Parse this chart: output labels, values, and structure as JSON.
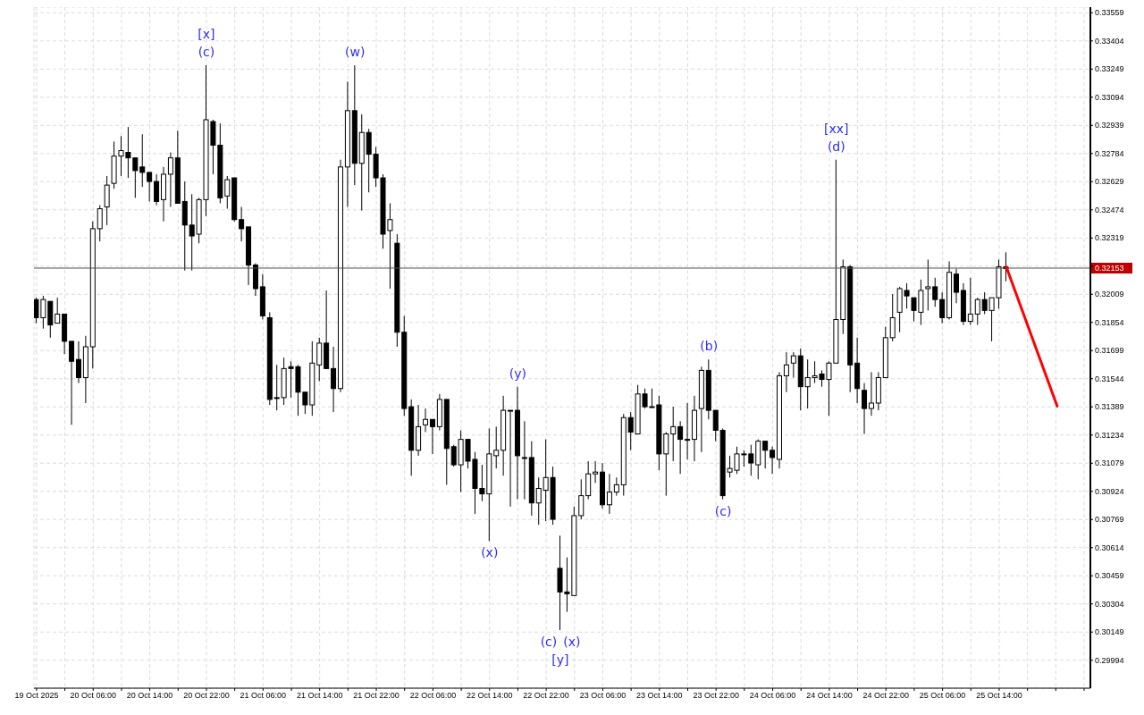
{
  "chart_data": {
    "type": "candlestick",
    "x": [
      "2025-10-19T22:00",
      "2025-10-19T23:00",
      "2025-10-20T00:00",
      "2025-10-20T01:00",
      "2025-10-20T02:00",
      "2025-10-20T03:00",
      "2025-10-20T04:00",
      "2025-10-20T05:00",
      "2025-10-20T06:00",
      "2025-10-20T07:00",
      "2025-10-20T08:00",
      "2025-10-20T09:00",
      "2025-10-20T10:00",
      "2025-10-20T11:00",
      "2025-10-20T12:00",
      "2025-10-20T13:00",
      "2025-10-20T14:00",
      "2025-10-20T15:00",
      "2025-10-20T16:00",
      "2025-10-20T17:00",
      "2025-10-20T18:00",
      "2025-10-20T19:00",
      "2025-10-20T20:00",
      "2025-10-20T21:00",
      "2025-10-20T22:00",
      "2025-10-20T23:00",
      "2025-10-21T00:00",
      "2025-10-21T01:00",
      "2025-10-21T02:00",
      "2025-10-21T03:00",
      "2025-10-21T04:00",
      "2025-10-21T05:00",
      "2025-10-21T06:00",
      "2025-10-21T07:00",
      "2025-10-21T08:00",
      "2025-10-21T09:00",
      "2025-10-21T10:00",
      "2025-10-21T11:00",
      "2025-10-21T12:00",
      "2025-10-21T13:00",
      "2025-10-21T14:00",
      "2025-10-21T15:00",
      "2025-10-21T16:00",
      "2025-10-21T17:00",
      "2025-10-21T18:00",
      "2025-10-21T19:00",
      "2025-10-21T20:00",
      "2025-10-21T21:00",
      "2025-10-21T22:00",
      "2025-10-21T23:00",
      "2025-10-22T00:00",
      "2025-10-22T01:00",
      "2025-10-22T02:00",
      "2025-10-22T03:00",
      "2025-10-22T04:00",
      "2025-10-22T05:00",
      "2025-10-22T06:00",
      "2025-10-22T07:00",
      "2025-10-22T08:00",
      "2025-10-22T09:00",
      "2025-10-22T10:00",
      "2025-10-22T11:00",
      "2025-10-22T12:00",
      "2025-10-22T13:00",
      "2025-10-22T14:00",
      "2025-10-22T15:00",
      "2025-10-22T16:00",
      "2025-10-22T17:00",
      "2025-10-22T18:00",
      "2025-10-22T19:00",
      "2025-10-22T20:00",
      "2025-10-22T21:00",
      "2025-10-22T22:00",
      "2025-10-22T23:00",
      "2025-10-23T00:00",
      "2025-10-23T01:00",
      "2025-10-23T02:00",
      "2025-10-23T03:00",
      "2025-10-23T04:00",
      "2025-10-23T05:00",
      "2025-10-23T06:00",
      "2025-10-23T07:00",
      "2025-10-23T08:00",
      "2025-10-23T09:00",
      "2025-10-23T10:00",
      "2025-10-23T11:00",
      "2025-10-23T12:00",
      "2025-10-23T13:00",
      "2025-10-23T14:00",
      "2025-10-23T15:00",
      "2025-10-23T16:00",
      "2025-10-23T17:00",
      "2025-10-23T18:00",
      "2025-10-23T19:00",
      "2025-10-23T20:00",
      "2025-10-23T21:00",
      "2025-10-23T22:00",
      "2025-10-23T23:00",
      "2025-10-24T00:00",
      "2025-10-24T01:00",
      "2025-10-24T02:00",
      "2025-10-24T03:00",
      "2025-10-24T04:00",
      "2025-10-24T05:00",
      "2025-10-24T06:00",
      "2025-10-24T07:00",
      "2025-10-24T08:00",
      "2025-10-24T09:00",
      "2025-10-24T10:00",
      "2025-10-24T11:00",
      "2025-10-24T12:00",
      "2025-10-24T13:00",
      "2025-10-24T14:00",
      "2025-10-24T15:00",
      "2025-10-24T16:00",
      "2025-10-24T17:00",
      "2025-10-24T18:00",
      "2025-10-24T19:00",
      "2025-10-24T20:00",
      "2025-10-24T21:00",
      "2025-10-24T22:00",
      "2025-10-24T23:00",
      "2025-10-25T00:00",
      "2025-10-25T01:00",
      "2025-10-25T02:00",
      "2025-10-25T03:00",
      "2025-10-25T04:00",
      "2025-10-25T05:00",
      "2025-10-25T06:00",
      "2025-10-25T07:00",
      "2025-10-25T08:00",
      "2025-10-25T09:00",
      "2025-10-25T10:00",
      "2025-10-25T11:00",
      "2025-10-25T12:00",
      "2025-10-25T13:00",
      "2025-10-25T14:00",
      "2025-10-25T15:00"
    ],
    "ohlc": [
      [
        0.3198,
        0.3199,
        0.3185,
        0.3188
      ],
      [
        0.3188,
        0.32,
        0.3182,
        0.3198
      ],
      [
        0.3197,
        0.3197,
        0.3177,
        0.3184
      ],
      [
        0.3185,
        0.3199,
        0.3185,
        0.319
      ],
      [
        0.319,
        0.319,
        0.3168,
        0.3175
      ],
      [
        0.3175,
        0.3175,
        0.3129,
        0.3164
      ],
      [
        0.3165,
        0.3175,
        0.3152,
        0.3155
      ],
      [
        0.3155,
        0.3178,
        0.3141,
        0.3172
      ],
      [
        0.3172,
        0.3241,
        0.316,
        0.3237
      ],
      [
        0.3237,
        0.325,
        0.323,
        0.3248
      ],
      [
        0.3249,
        0.3266,
        0.3239,
        0.3261
      ],
      [
        0.3262,
        0.3285,
        0.3259,
        0.3277
      ],
      [
        0.3277,
        0.3288,
        0.3266,
        0.328
      ],
      [
        0.3279,
        0.3293,
        0.3265,
        0.3276
      ],
      [
        0.3276,
        0.3276,
        0.3254,
        0.3269
      ],
      [
        0.3271,
        0.3289,
        0.326,
        0.3268
      ],
      [
        0.3268,
        0.3268,
        0.3252,
        0.3263
      ],
      [
        0.3263,
        0.3267,
        0.325,
        0.3252
      ],
      [
        0.3253,
        0.3271,
        0.3241,
        0.3267
      ],
      [
        0.3267,
        0.3279,
        0.3249,
        0.3276
      ],
      [
        0.3276,
        0.3291,
        0.3251,
        0.3251
      ],
      [
        0.3252,
        0.3263,
        0.3214,
        0.3239
      ],
      [
        0.3239,
        0.3256,
        0.3214,
        0.3233
      ],
      [
        0.3234,
        0.3254,
        0.3229,
        0.3253
      ],
      [
        0.3253,
        0.3327,
        0.3244,
        0.3297
      ],
      [
        0.3296,
        0.3297,
        0.3267,
        0.3283
      ],
      [
        0.3283,
        0.3295,
        0.3251,
        0.3254
      ],
      [
        0.3255,
        0.3266,
        0.3248,
        0.3264
      ],
      [
        0.3265,
        0.3265,
        0.3241,
        0.3242
      ],
      [
        0.3242,
        0.3249,
        0.323,
        0.3237
      ],
      [
        0.3238,
        0.3238,
        0.3206,
        0.3217
      ],
      [
        0.3217,
        0.3218,
        0.32,
        0.3204
      ],
      [
        0.3205,
        0.3212,
        0.3187,
        0.3189
      ],
      [
        0.3188,
        0.3191,
        0.314,
        0.3143
      ],
      [
        0.3144,
        0.3162,
        0.3137,
        0.3144
      ],
      [
        0.3144,
        0.3166,
        0.314,
        0.316
      ],
      [
        0.3161,
        0.3164,
        0.3144,
        0.316
      ],
      [
        0.3161,
        0.3162,
        0.3134,
        0.3147
      ],
      [
        0.3147,
        0.3147,
        0.3135,
        0.314
      ],
      [
        0.314,
        0.3175,
        0.3134,
        0.3163
      ],
      [
        0.3162,
        0.3177,
        0.3153,
        0.3174
      ],
      [
        0.3174,
        0.3203,
        0.316,
        0.316
      ],
      [
        0.316,
        0.3172,
        0.3136,
        0.3149
      ],
      [
        0.3149,
        0.3275,
        0.3147,
        0.3271
      ],
      [
        0.3271,
        0.3318,
        0.3249,
        0.3302
      ],
      [
        0.3302,
        0.3327,
        0.3261,
        0.3273
      ],
      [
        0.3273,
        0.33,
        0.3247,
        0.329
      ],
      [
        0.329,
        0.3292,
        0.3257,
        0.3278
      ],
      [
        0.3278,
        0.3282,
        0.326,
        0.3265
      ],
      [
        0.3265,
        0.3267,
        0.3226,
        0.3234
      ],
      [
        0.3236,
        0.3251,
        0.3204,
        0.3242
      ],
      [
        0.3229,
        0.3234,
        0.3172,
        0.318
      ],
      [
        0.318,
        0.3189,
        0.3134,
        0.3138
      ],
      [
        0.3139,
        0.3143,
        0.3101,
        0.3115
      ],
      [
        0.3115,
        0.314,
        0.3112,
        0.3128
      ],
      [
        0.3129,
        0.3138,
        0.3125,
        0.3132
      ],
      [
        0.3132,
        0.3132,
        0.3113,
        0.3128
      ],
      [
        0.3128,
        0.3146,
        0.3126,
        0.3143
      ],
      [
        0.3143,
        0.3143,
        0.3096,
        0.3116
      ],
      [
        0.3117,
        0.3118,
        0.3106,
        0.3107
      ],
      [
        0.3107,
        0.3126,
        0.3092,
        0.3121
      ],
      [
        0.3121,
        0.3121,
        0.3105,
        0.3109
      ],
      [
        0.311,
        0.3114,
        0.308,
        0.3094
      ],
      [
        0.3094,
        0.3107,
        0.3087,
        0.3091
      ],
      [
        0.3091,
        0.3127,
        0.3065,
        0.3113
      ],
      [
        0.3112,
        0.3128,
        0.3105,
        0.3115
      ],
      [
        0.3115,
        0.3145,
        0.3101,
        0.3137
      ],
      [
        0.3137,
        0.3137,
        0.3084,
        0.3137
      ],
      [
        0.3137,
        0.315,
        0.3088,
        0.3112
      ],
      [
        0.3111,
        0.3131,
        0.3088,
        0.3111
      ],
      [
        0.3111,
        0.312,
        0.3079,
        0.3086
      ],
      [
        0.3086,
        0.31,
        0.3074,
        0.3094
      ],
      [
        0.3093,
        0.3121,
        0.3076,
        0.31
      ],
      [
        0.31,
        0.3106,
        0.3074,
        0.3077
      ],
      [
        0.305,
        0.3068,
        0.3016,
        0.3037
      ],
      [
        0.3037,
        0.3056,
        0.3026,
        0.3036
      ],
      [
        0.3035,
        0.3084,
        0.3035,
        0.3079
      ],
      [
        0.3079,
        0.3099,
        0.3077,
        0.309
      ],
      [
        0.309,
        0.3109,
        0.3088,
        0.3102
      ],
      [
        0.3102,
        0.3109,
        0.3097,
        0.3103
      ],
      [
        0.3103,
        0.3108,
        0.3083,
        0.3085
      ],
      [
        0.3085,
        0.3102,
        0.308,
        0.3092
      ],
      [
        0.3092,
        0.31,
        0.309,
        0.3096
      ],
      [
        0.3096,
        0.3135,
        0.309,
        0.3133
      ],
      [
        0.3133,
        0.3136,
        0.3115,
        0.3125
      ],
      [
        0.3124,
        0.3151,
        0.3124,
        0.3146
      ],
      [
        0.3146,
        0.3149,
        0.3138,
        0.3139
      ],
      [
        0.3139,
        0.3149,
        0.3139,
        0.3139
      ],
      [
        0.314,
        0.3145,
        0.3104,
        0.3113
      ],
      [
        0.3113,
        0.3125,
        0.309,
        0.3124
      ],
      [
        0.3124,
        0.3139,
        0.3109,
        0.3128
      ],
      [
        0.3128,
        0.3131,
        0.3102,
        0.3121
      ],
      [
        0.3121,
        0.3141,
        0.311,
        0.3121
      ],
      [
        0.3121,
        0.3145,
        0.3109,
        0.3137
      ],
      [
        0.3138,
        0.3161,
        0.3114,
        0.3159
      ],
      [
        0.3159,
        0.3165,
        0.3132,
        0.3137
      ],
      [
        0.3137,
        0.3137,
        0.312,
        0.3126
      ],
      [
        0.3126,
        0.3127,
        0.3088,
        0.309
      ],
      [
        0.3103,
        0.3112,
        0.31,
        0.3105
      ],
      [
        0.3104,
        0.3117,
        0.3102,
        0.3113
      ],
      [
        0.3113,
        0.3115,
        0.3106,
        0.3113
      ],
      [
        0.3113,
        0.3118,
        0.3101,
        0.3108
      ],
      [
        0.3107,
        0.3121,
        0.3099,
        0.312
      ],
      [
        0.312,
        0.312,
        0.3105,
        0.3115
      ],
      [
        0.3115,
        0.3117,
        0.3102,
        0.3111
      ],
      [
        0.311,
        0.3158,
        0.3105,
        0.3156
      ],
      [
        0.3156,
        0.3169,
        0.3147,
        0.3162
      ],
      [
        0.3163,
        0.3169,
        0.3155,
        0.3167
      ],
      [
        0.3167,
        0.3171,
        0.3137,
        0.315
      ],
      [
        0.315,
        0.3165,
        0.3138,
        0.3155
      ],
      [
        0.3155,
        0.3164,
        0.3152,
        0.3156
      ],
      [
        0.3157,
        0.3159,
        0.315,
        0.3154
      ],
      [
        0.3154,
        0.3164,
        0.3134,
        0.3163
      ],
      [
        0.3163,
        0.3275,
        0.3163,
        0.3187
      ],
      [
        0.3187,
        0.322,
        0.3179,
        0.3216
      ],
      [
        0.3216,
        0.3217,
        0.3147,
        0.3162
      ],
      [
        0.3163,
        0.3177,
        0.3141,
        0.3149
      ],
      [
        0.3148,
        0.3152,
        0.3124,
        0.3138
      ],
      [
        0.3138,
        0.3158,
        0.3134,
        0.3141
      ],
      [
        0.3141,
        0.3158,
        0.3137,
        0.3155
      ],
      [
        0.3155,
        0.3183,
        0.3155,
        0.3177
      ],
      [
        0.3177,
        0.3201,
        0.3175,
        0.3188
      ],
      [
        0.3191,
        0.3205,
        0.318,
        0.3204
      ],
      [
        0.3203,
        0.3207,
        0.3193,
        0.32
      ],
      [
        0.3199,
        0.3199,
        0.3186,
        0.3192
      ],
      [
        0.3191,
        0.3209,
        0.3184,
        0.3203
      ],
      [
        0.3204,
        0.322,
        0.3192,
        0.3205
      ],
      [
        0.3205,
        0.321,
        0.3194,
        0.3198
      ],
      [
        0.3198,
        0.3202,
        0.3185,
        0.3188
      ],
      [
        0.3188,
        0.3219,
        0.3187,
        0.3213
      ],
      [
        0.3212,
        0.3215,
        0.3196,
        0.3202
      ],
      [
        0.3203,
        0.3207,
        0.3184,
        0.3186
      ],
      [
        0.3186,
        0.321,
        0.3184,
        0.319
      ],
      [
        0.319,
        0.3199,
        0.3184,
        0.3198
      ],
      [
        0.3198,
        0.3202,
        0.319,
        0.3192
      ],
      [
        0.3192,
        0.3199,
        0.3175,
        0.3199
      ],
      [
        0.3199,
        0.322,
        0.3193,
        0.3216
      ],
      [
        0.3216,
        0.3224,
        0.3208,
        0.3215
      ]
    ],
    "xlim": [
      "2025-10-19T21:38",
      "2025-10-26T02:53"
    ],
    "xticks": [
      {
        "value": "2025-10-19T22:00",
        "label": "19 Oct 2025"
      },
      {
        "value": "2025-10-20T02:00",
        "label": null
      },
      {
        "value": "2025-10-20T06:00",
        "label": "20 Oct 06:00"
      },
      {
        "value": "2025-10-20T10:00",
        "label": null
      },
      {
        "value": "2025-10-20T14:00",
        "label": "20 Oct 14:00"
      },
      {
        "value": "2025-10-20T18:00",
        "label": null
      },
      {
        "value": "2025-10-20T22:00",
        "label": "20 Oct 22:00"
      },
      {
        "value": "2025-10-21T02:00",
        "label": null
      },
      {
        "value": "2025-10-21T06:00",
        "label": "21 Oct 06:00"
      },
      {
        "value": "2025-10-21T10:00",
        "label": null
      },
      {
        "value": "2025-10-21T14:00",
        "label": "21 Oct 14:00"
      },
      {
        "value": "2025-10-21T18:00",
        "label": null
      },
      {
        "value": "2025-10-21T22:00",
        "label": "21 Oct 22:00"
      },
      {
        "value": "2025-10-22T02:00",
        "label": null
      },
      {
        "value": "2025-10-22T06:00",
        "label": "22 Oct 06:00"
      },
      {
        "value": "2025-10-22T10:00",
        "label": null
      },
      {
        "value": "2025-10-22T14:00",
        "label": "22 Oct 14:00"
      },
      {
        "value": "2025-10-22T18:00",
        "label": null
      },
      {
        "value": "2025-10-22T22:00",
        "label": "22 Oct 22:00"
      },
      {
        "value": "2025-10-23T02:00",
        "label": null
      },
      {
        "value": "2025-10-23T06:00",
        "label": "23 Oct 06:00"
      },
      {
        "value": "2025-10-23T10:00",
        "label": null
      },
      {
        "value": "2025-10-23T14:00",
        "label": "23 Oct 14:00"
      },
      {
        "value": "2025-10-23T18:00",
        "label": null
      },
      {
        "value": "2025-10-23T22:00",
        "label": "23 Oct 22:00"
      },
      {
        "value": "2025-10-24T02:00",
        "label": null
      },
      {
        "value": "2025-10-24T06:00",
        "label": "24 Oct 06:00"
      },
      {
        "value": "2025-10-24T10:00",
        "label": null
      },
      {
        "value": "2025-10-24T14:00",
        "label": "24 Oct 14:00"
      },
      {
        "value": "2025-10-24T18:00",
        "label": null
      },
      {
        "value": "2025-10-24T22:00",
        "label": "24 Oct 22:00"
      },
      {
        "value": "2025-10-25T02:00",
        "label": null
      },
      {
        "value": "2025-10-25T06:00",
        "label": "25 Oct 06:00"
      },
      {
        "value": "2025-10-25T10:00",
        "label": null
      },
      {
        "value": "2025-10-25T14:00",
        "label": "25 Oct 14:00"
      },
      {
        "value": "2025-10-25T18:00",
        "label": null
      },
      {
        "value": "2025-10-25T22:00",
        "label": null
      },
      {
        "value": "2025-10-26T02:00",
        "label": null
      }
    ],
    "ylim": [
      0.2984,
      0.3359
    ],
    "yticks": [
      0.29994,
      0.30149,
      0.30304,
      0.30459,
      0.30614,
      0.30769,
      0.30924,
      0.31079,
      0.31234,
      0.31389,
      0.31544,
      0.31699,
      0.31854,
      0.32009,
      {
        "value": 0.32164,
        "label": null
      },
      0.32319,
      0.32474,
      0.32629,
      0.32784,
      0.32939,
      0.33094,
      0.33249,
      0.33404,
      0.33559
    ],
    "grid": true,
    "ref_lines": [
      {
        "axis": "y",
        "value": 0.32153,
        "label": "0.32153",
        "color": "#4d4d4d"
      }
    ],
    "annotations": [
      {
        "text": "[x]",
        "x": "2025-10-20T22:00",
        "y": 0.3327
      },
      {
        "text": "(c)",
        "x": "2025-10-20T22:00",
        "y": 0.3327
      },
      {
        "text": "(w)",
        "x": "2025-10-21T19:00",
        "y": 0.3327
      },
      {
        "text": "(x)",
        "x": "2025-10-22T14:00",
        "y": 0.3065
      },
      {
        "text": "(y)",
        "x": "2025-10-22T18:00",
        "y": 0.315
      },
      {
        "text": "(c)",
        "x": "2025-10-23T00:00",
        "y": 0.3016
      },
      {
        "text": "(x)",
        "x": "2025-10-23T00:00",
        "y": 0.3016
      },
      {
        "text": "[y]",
        "x": "2025-10-23T00:00",
        "y": 0.3016
      },
      {
        "text": "(b)",
        "x": "2025-10-23T21:00",
        "y": 0.3165
      },
      {
        "text": "(c)",
        "x": "2025-10-23T23:00",
        "y": 0.3088
      },
      {
        "text": "[xx]",
        "x": "2025-10-24T15:00",
        "y": 0.3275
      },
      {
        "text": "(d)",
        "x": "2025-10-24T15:00",
        "y": 0.3275
      }
    ]
  }
}
